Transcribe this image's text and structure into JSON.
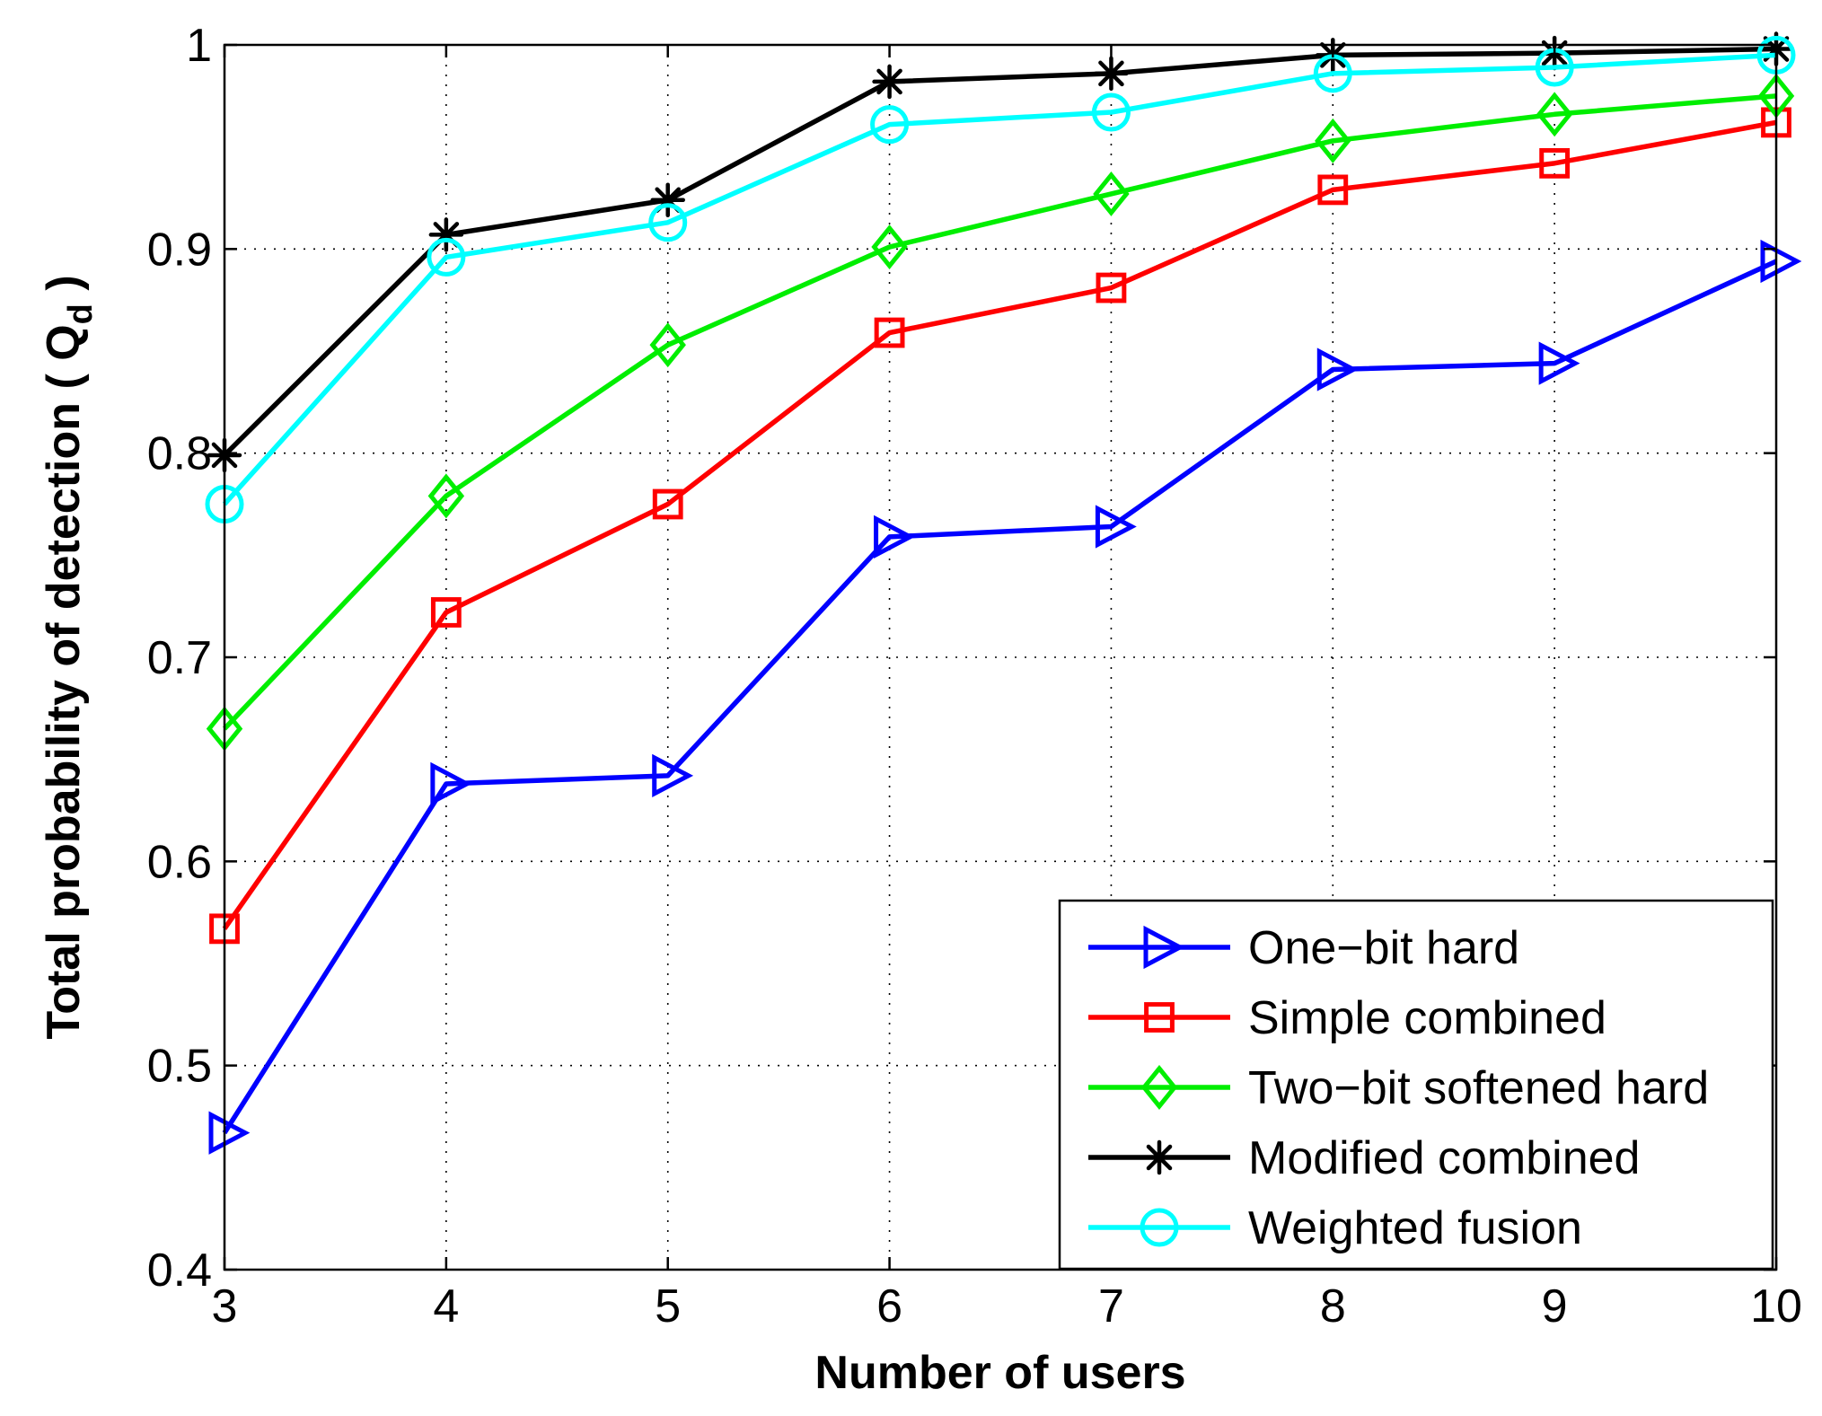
{
  "chart_data": {
    "type": "line",
    "title": "",
    "xlabel": "Number of users",
    "ylabel": "Total probability of detection ( Q",
    "ylabel_subscript": "d",
    "ylabel_suffix": " )",
    "x": [
      3,
      4,
      5,
      6,
      7,
      8,
      9,
      10
    ],
    "xlim": [
      3,
      10
    ],
    "ylim": [
      0.4,
      1
    ],
    "xticks": [
      "3",
      "4",
      "5",
      "6",
      "7",
      "8",
      "9",
      "10"
    ],
    "yticks": [
      "0.4",
      "0.5",
      "0.6",
      "0.7",
      "0.8",
      "0.9",
      "1"
    ],
    "ytick_values": [
      0.4,
      0.5,
      0.6,
      0.7,
      0.8,
      0.9,
      1.0
    ],
    "grid": true,
    "legend_position": "bottom-right",
    "series": [
      {
        "name": "One−bit hard",
        "color": "#0000ff",
        "marker": "triangle-right",
        "values": [
          0.467,
          0.638,
          0.642,
          0.759,
          0.764,
          0.841,
          0.844,
          0.894
        ]
      },
      {
        "name": "Simple combined",
        "color": "#ff0000",
        "marker": "square",
        "values": [
          0.567,
          0.722,
          0.775,
          0.859,
          0.881,
          0.929,
          0.942,
          0.962
        ]
      },
      {
        "name": "Two−bit softened hard",
        "color": "#00ee00",
        "marker": "diamond",
        "values": [
          0.665,
          0.779,
          0.853,
          0.901,
          0.927,
          0.953,
          0.966,
          0.975
        ]
      },
      {
        "name": "Modified combined",
        "color": "#000000",
        "marker": "asterisk",
        "values": [
          0.799,
          0.907,
          0.924,
          0.982,
          0.986,
          0.995,
          0.996,
          0.998
        ]
      },
      {
        "name": "Weighted fusion",
        "color": "#00ffff",
        "marker": "circle",
        "values": [
          0.775,
          0.896,
          0.913,
          0.961,
          0.967,
          0.986,
          0.989,
          0.995
        ]
      }
    ]
  }
}
